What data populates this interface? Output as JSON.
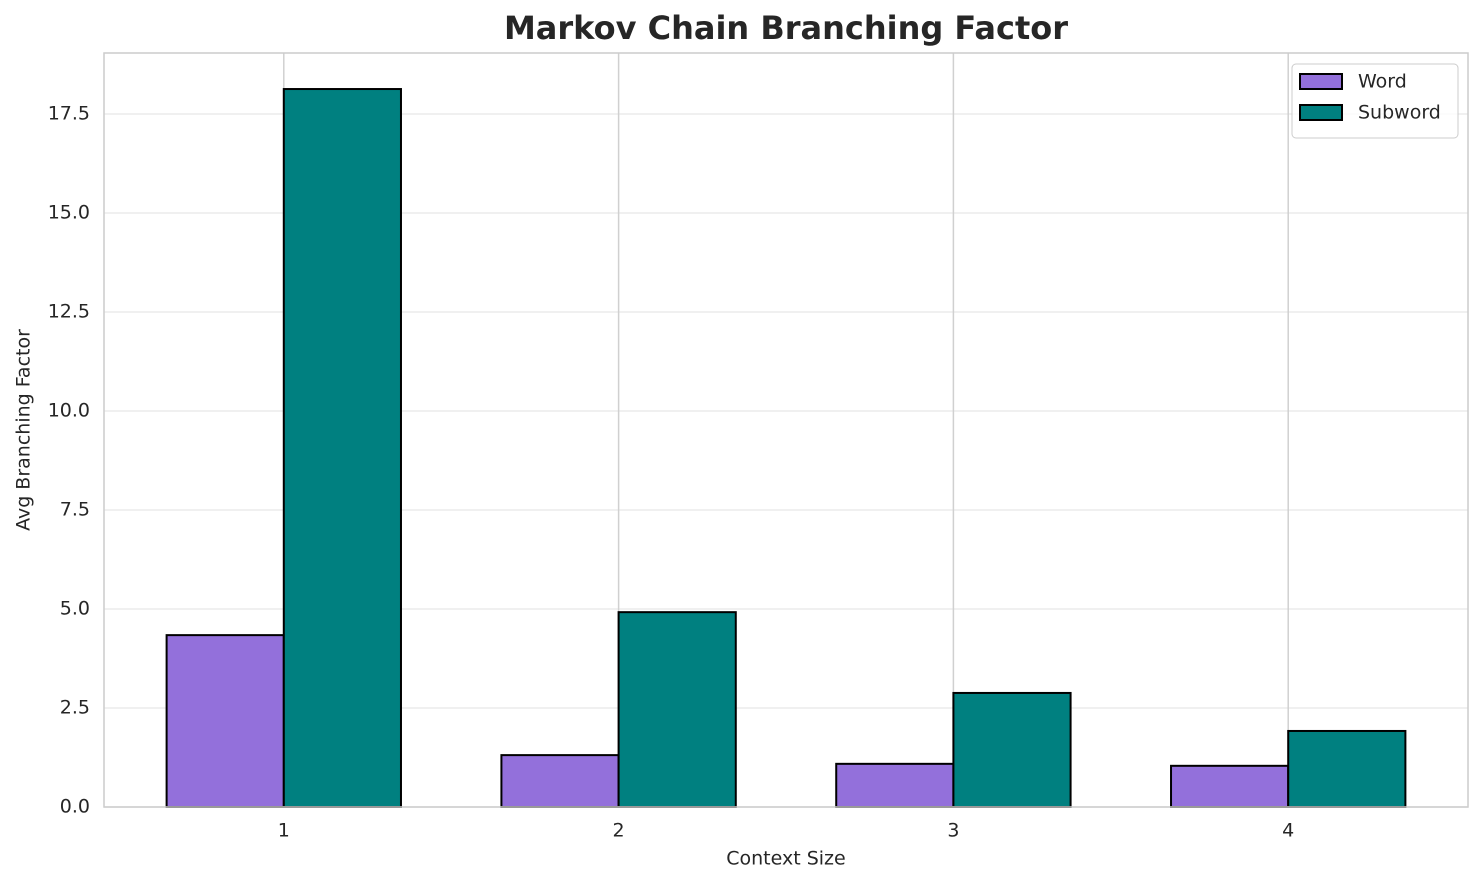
{
  "chart_data": {
    "type": "bar",
    "title": "Markov Chain Branching Factor",
    "x_label": "Context Size",
    "y_label": "Avg Branching Factor",
    "categories": [
      "1",
      "2",
      "3",
      "4"
    ],
    "series": [
      {
        "name": "Word",
        "color": "#9370db",
        "values": [
          4.34,
          1.31,
          1.09,
          1.04
        ]
      },
      {
        "name": "Subword",
        "color": "#008080",
        "values": [
          18.13,
          4.92,
          2.88,
          1.92
        ]
      }
    ],
    "ylim": [
      0,
      19.04
    ],
    "yticks": [
      {
        "value": 0,
        "label": "0.0"
      },
      {
        "value": 2.5,
        "label": "2.5"
      },
      {
        "value": 5,
        "label": "5.0"
      },
      {
        "value": 7.5,
        "label": "7.5"
      },
      {
        "value": 10,
        "label": "10.0"
      },
      {
        "value": 12.5,
        "label": "12.5"
      },
      {
        "value": 15,
        "label": "15.0"
      },
      {
        "value": 17.5,
        "label": "17.5"
      }
    ],
    "grid": true,
    "legend": "upper right"
  }
}
